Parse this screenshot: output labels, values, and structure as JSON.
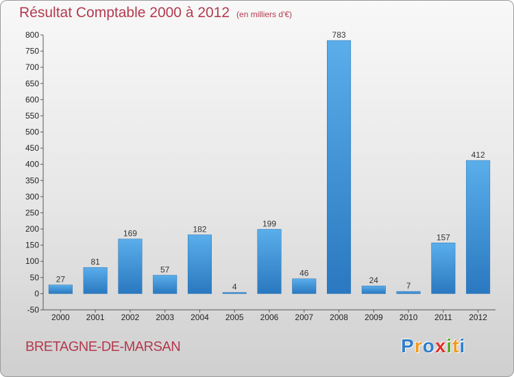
{
  "chart_data": {
    "type": "bar",
    "title": "Résultat Comptable 2000 à 2012",
    "subtitle": "(en milliers d'€)",
    "categories": [
      "2000",
      "2001",
      "2002",
      "2003",
      "2004",
      "2005",
      "2006",
      "2007",
      "2008",
      "2009",
      "2010",
      "2011",
      "2012"
    ],
    "values": [
      27,
      81,
      169,
      57,
      182,
      4,
      199,
      46,
      783,
      24,
      7,
      157,
      412
    ],
    "ylim": [
      -50,
      800
    ],
    "yticks": [
      -50,
      0,
      50,
      100,
      150,
      200,
      250,
      300,
      350,
      400,
      450,
      500,
      550,
      600,
      650,
      700,
      750,
      800
    ],
    "grid": false,
    "bar_color": "#3a8fd6"
  },
  "footer": {
    "commune": "BRETAGNE-DE-MARSAN",
    "logo_letters": [
      "P",
      "r",
      "o",
      "x",
      "i",
      "t",
      "i"
    ],
    "logo_colors": [
      "#2f7fc8",
      "#f29a1e",
      "#2f7fc8",
      "#e0302a",
      "#5aaa2e",
      "#f29a1e",
      "#2f7fc8"
    ]
  }
}
